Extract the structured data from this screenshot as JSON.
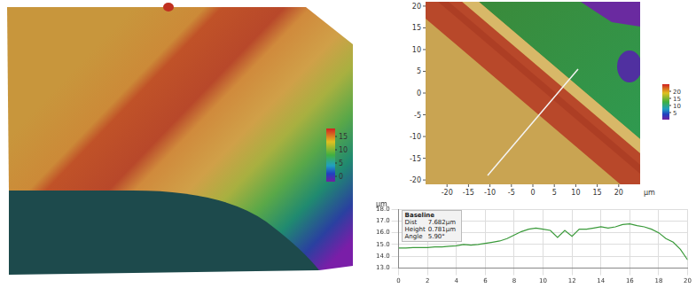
{
  "surface_view": {
    "colorbar": {
      "range": [
        -2,
        18
      ],
      "ticks": [
        0,
        5,
        10,
        15
      ]
    }
  },
  "height_map": {
    "unit": "µm",
    "xlim": [
      -25,
      25
    ],
    "xticks": [
      -20,
      -15,
      -10,
      -5,
      0,
      5,
      10,
      15,
      20
    ],
    "ylim": [
      -21,
      21
    ],
    "yticks": [
      -20,
      -15,
      -10,
      -5,
      0,
      5,
      10,
      15,
      20
    ],
    "colorbar": {
      "range": [
        0,
        25
      ],
      "ticks": [
        5,
        10,
        15,
        20
      ]
    }
  },
  "chart_data": {
    "type": "line",
    "ylabel": "µm",
    "x": [
      0,
      0.5,
      1,
      1.5,
      2,
      2.5,
      3,
      3.5,
      4,
      4.5,
      5,
      5.5,
      6,
      6.5,
      7,
      7.5,
      8,
      8.5,
      9,
      9.5,
      10,
      10.5,
      11,
      11.5,
      12,
      12.5,
      13,
      13.5,
      14,
      14.5,
      15,
      15.5,
      16,
      16.5,
      17,
      17.5,
      18,
      18.5,
      19,
      19.5,
      20
    ],
    "values": [
      14.7,
      14.7,
      14.75,
      14.75,
      14.75,
      14.8,
      14.8,
      14.85,
      14.9,
      15.0,
      14.95,
      15.0,
      15.1,
      15.2,
      15.3,
      15.5,
      15.8,
      16.1,
      16.3,
      16.4,
      16.3,
      16.2,
      15.6,
      16.2,
      15.7,
      16.3,
      16.3,
      16.4,
      16.5,
      16.4,
      16.5,
      16.7,
      16.75,
      16.6,
      16.5,
      16.3,
      16.0,
      15.5,
      15.2,
      14.6,
      13.7
    ],
    "color": "#3a9a3a",
    "xlim": [
      0,
      20
    ],
    "xticks": [
      0,
      2,
      4,
      6,
      8,
      10,
      12,
      14,
      16,
      18,
      20
    ],
    "ylim": [
      13,
      18
    ],
    "yticks": [
      {
        "value": 13,
        "label": "13.0"
      },
      {
        "value": 14,
        "label": "14.0"
      },
      {
        "value": 15,
        "label": "15.0"
      },
      {
        "value": 16,
        "label": "16.0"
      },
      {
        "value": 17,
        "label": "17.0"
      },
      {
        "value": 18,
        "label": "18.0"
      }
    ],
    "grid": true,
    "annotations": {
      "title": "Baseline",
      "rows": [
        [
          "Dist",
          "7.682µm"
        ],
        [
          "Height",
          "0.781µm"
        ],
        [
          "Angle",
          "5.90°"
        ]
      ]
    }
  }
}
